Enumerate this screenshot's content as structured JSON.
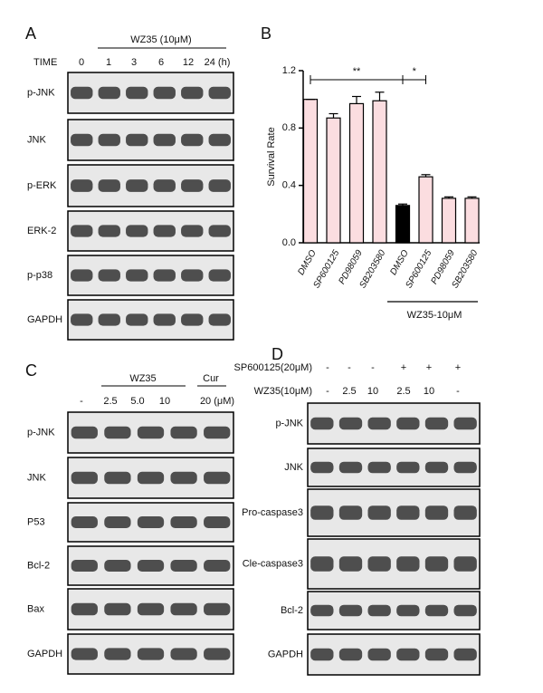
{
  "panel_a": {
    "label": "A",
    "header": "WZ35 (10μM)",
    "time_label": "TIME",
    "lanes": [
      "0",
      "1",
      "3",
      "6",
      "12",
      "24 (h)"
    ],
    "rows": [
      "p-JNK",
      "JNK",
      "p-ERK",
      "ERK-2",
      "p-p38",
      "GAPDH"
    ]
  },
  "panel_b": {
    "label": "B",
    "chart_data": {
      "type": "bar",
      "y_label": "Survival Rate",
      "categories": [
        "DMSO",
        "SP600125",
        "PD98059",
        "SB203580",
        "DMSO",
        "SP600125",
        "PD98059",
        "SB203580"
      ],
      "values": [
        1.0,
        0.87,
        0.97,
        0.99,
        0.26,
        0.46,
        0.31,
        0.31
      ],
      "errors": [
        0,
        0.03,
        0.05,
        0.06,
        0.01,
        0.015,
        0.01,
        0.01
      ],
      "colors": [
        "#fbdde0",
        "#fbdde0",
        "#fbdde0",
        "#fbdde0",
        "#000000",
        "#fbdde0",
        "#fbdde0",
        "#fbdde0"
      ],
      "ylim": [
        0,
        1.2
      ],
      "yticks": [
        {
          "value": 0,
          "label": "0.0"
        },
        0.4,
        0.8,
        1.2
      ],
      "annotations": [
        "**",
        "*"
      ],
      "group_label": "WZ35-10μM"
    }
  },
  "panel_c": {
    "label": "C",
    "header": "WZ35",
    "cur": "Cur",
    "lanes": [
      "-",
      "2.5",
      "5.0",
      "10",
      "20 (μM)"
    ],
    "rows": [
      "p-JNK",
      "JNK",
      "P53",
      "Bcl-2",
      "Bax",
      "GAPDH"
    ]
  },
  "panel_d": {
    "label": "D",
    "treatments": [
      {
        "name": "SP600125(20μM)",
        "marks": [
          "-",
          "-",
          "-",
          "+",
          "+",
          "+"
        ]
      },
      {
        "name": "WZ35(10μM)",
        "marks": [
          "-",
          "2.5",
          "10",
          "2.5",
          "10",
          "-"
        ]
      }
    ],
    "rows": [
      "p-JNK",
      "JNK",
      "Pro-caspase3",
      "Cle-caspase3",
      "Bcl-2",
      "GAPDH"
    ]
  }
}
